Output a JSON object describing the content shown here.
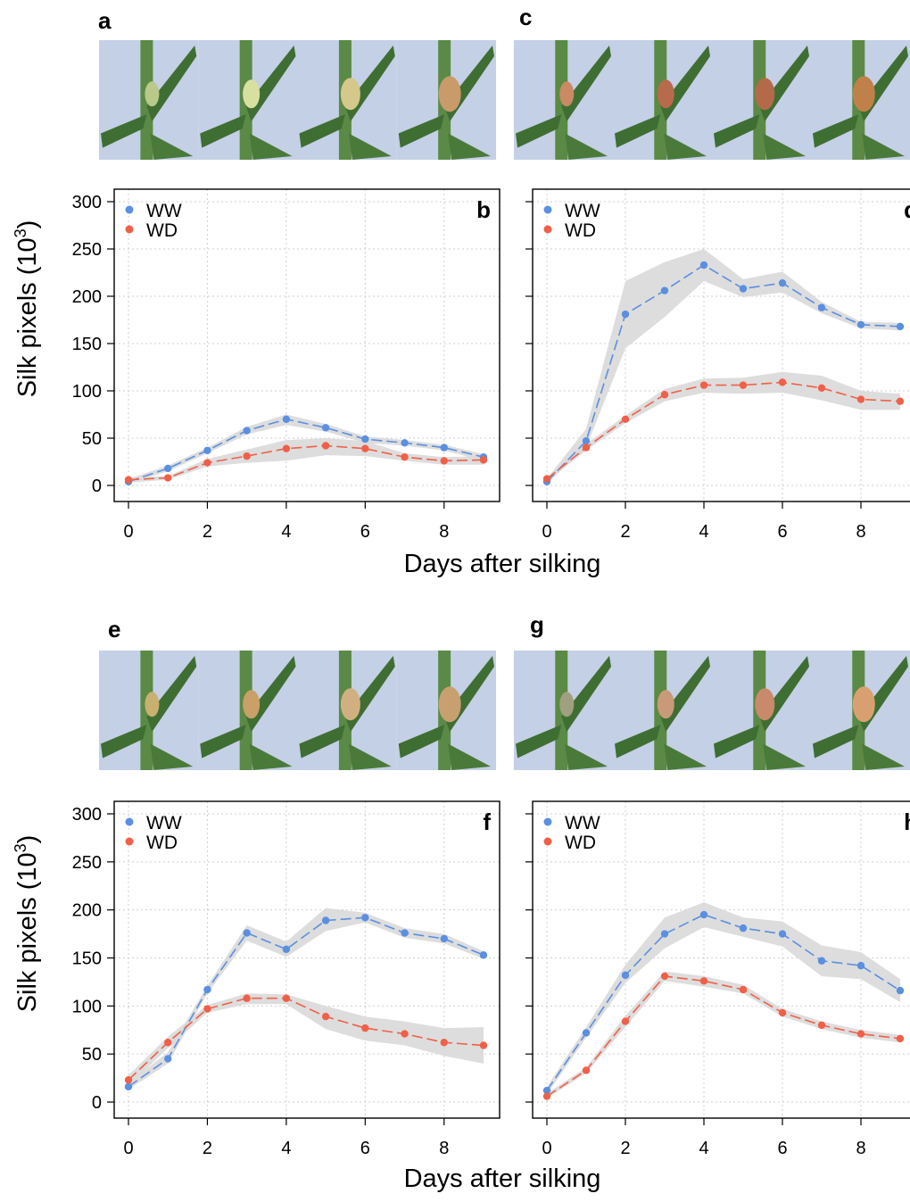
{
  "colors": {
    "ww": "#5b8fe0",
    "wd": "#f06048",
    "band": "#d9d9d9",
    "grid": "#cfcfcf",
    "sky": "#c4d0e6",
    "leaf": "#3f6e33",
    "stem": "#5a8a45"
  },
  "x_axis_title": "Days after silking",
  "y_axis_title": "Silk pixels (10",
  "y_axis_title_sup": "3",
  "y_axis_title_end": ")",
  "photo_rows": [
    {
      "letters": [
        "a",
        "c"
      ]
    },
    {
      "letters": [
        "e",
        "g"
      ]
    }
  ],
  "chart_data": [
    {
      "panel": "b",
      "type": "line",
      "ylim": [
        0,
        300
      ],
      "xlim": [
        0,
        9
      ],
      "x_ticks": [
        0,
        2,
        4,
        6,
        8
      ],
      "y_ticks": [
        0,
        50,
        100,
        150,
        200,
        250,
        300
      ],
      "grid": true,
      "legend": "top-left",
      "x": [
        0,
        1,
        2,
        3,
        4,
        5,
        6,
        7,
        8,
        9
      ],
      "series": [
        {
          "name": "WW",
          "values": [
            4,
            18,
            37,
            58,
            70,
            61,
            49,
            45,
            40,
            30
          ],
          "band_lo": [
            2,
            15,
            34,
            54,
            64,
            57,
            45,
            42,
            37,
            26
          ],
          "band_hi": [
            7,
            21,
            40,
            62,
            75,
            65,
            52,
            48,
            43,
            33
          ]
        },
        {
          "name": "WD",
          "values": [
            6,
            8,
            24,
            31,
            39,
            42,
            39,
            30,
            26,
            27
          ],
          "band_lo": [
            3,
            6,
            20,
            24,
            26,
            32,
            31,
            26,
            22,
            22
          ],
          "band_hi": [
            8,
            10,
            28,
            38,
            48,
            50,
            47,
            34,
            30,
            31
          ]
        }
      ]
    },
    {
      "panel": "d",
      "type": "line",
      "ylim": [
        0,
        300
      ],
      "xlim": [
        0,
        9
      ],
      "x_ticks": [
        0,
        2,
        4,
        6,
        8
      ],
      "y_ticks": [
        0,
        50,
        100,
        150,
        200,
        250,
        300
      ],
      "grid": true,
      "legend": "top-left",
      "x": [
        0,
        1,
        2,
        3,
        4,
        5,
        6,
        7,
        8,
        9
      ],
      "series": [
        {
          "name": "WW",
          "values": [
            4,
            47,
            181,
            206,
            233,
            208,
            214,
            188,
            170,
            168
          ],
          "band_lo": [
            2,
            40,
            145,
            178,
            216,
            199,
            204,
            182,
            166,
            164
          ],
          "band_hi": [
            7,
            60,
            216,
            236,
            250,
            218,
            226,
            194,
            173,
            172
          ]
        },
        {
          "name": "WD",
          "values": [
            7,
            40,
            70,
            96,
            106,
            106,
            109,
            103,
            91,
            89
          ],
          "band_lo": [
            4,
            37,
            66,
            89,
            98,
            97,
            98,
            90,
            80,
            80
          ],
          "band_hi": [
            9,
            44,
            74,
            102,
            113,
            114,
            120,
            116,
            100,
            97
          ]
        }
      ]
    },
    {
      "panel": "f",
      "type": "line",
      "ylim": [
        0,
        300
      ],
      "xlim": [
        0,
        9
      ],
      "x_ticks": [
        0,
        2,
        4,
        6,
        8
      ],
      "y_ticks": [
        0,
        50,
        100,
        150,
        200,
        250,
        300
      ],
      "grid": true,
      "legend": "top-left",
      "x": [
        0,
        1,
        2,
        3,
        4,
        5,
        6,
        7,
        8,
        9
      ],
      "series": [
        {
          "name": "WW",
          "values": [
            16,
            45,
            117,
            176,
            159,
            189,
            192,
            176,
            170,
            153
          ],
          "band_lo": [
            13,
            40,
            113,
            168,
            151,
            178,
            187,
            171,
            165,
            149
          ],
          "band_hi": [
            20,
            52,
            121,
            184,
            167,
            202,
            197,
            181,
            175,
            157
          ]
        },
        {
          "name": "WD",
          "values": [
            23,
            62,
            97,
            108,
            108,
            89,
            77,
            71,
            62,
            59
          ],
          "band_lo": [
            17,
            56,
            93,
            102,
            102,
            76,
            64,
            59,
            48,
            40
          ],
          "band_hi": [
            28,
            68,
            101,
            113,
            112,
            100,
            89,
            84,
            77,
            78
          ]
        }
      ]
    },
    {
      "panel": "h",
      "type": "line",
      "ylim": [
        0,
        300
      ],
      "xlim": [
        0,
        9
      ],
      "x_ticks": [
        0,
        2,
        4,
        6,
        8
      ],
      "y_ticks": [
        0,
        50,
        100,
        150,
        200,
        250,
        300
      ],
      "grid": true,
      "legend": "top-left",
      "x": [
        0,
        1,
        2,
        3,
        4,
        5,
        6,
        7,
        8,
        9
      ],
      "series": [
        {
          "name": "WW",
          "values": [
            12,
            72,
            132,
            175,
            195,
            181,
            175,
            147,
            142,
            116
          ],
          "band_lo": [
            8,
            67,
            124,
            160,
            182,
            172,
            162,
            131,
            128,
            104
          ],
          "band_hi": [
            16,
            78,
            143,
            192,
            208,
            192,
            188,
            163,
            156,
            128
          ]
        },
        {
          "name": "WD",
          "values": [
            6,
            33,
            84,
            131,
            126,
            117,
            93,
            80,
            71,
            66
          ],
          "band_lo": [
            4,
            30,
            78,
            126,
            120,
            113,
            89,
            76,
            67,
            62
          ],
          "band_hi": [
            9,
            36,
            90,
            136,
            131,
            122,
            97,
            84,
            75,
            70
          ]
        }
      ]
    }
  ]
}
